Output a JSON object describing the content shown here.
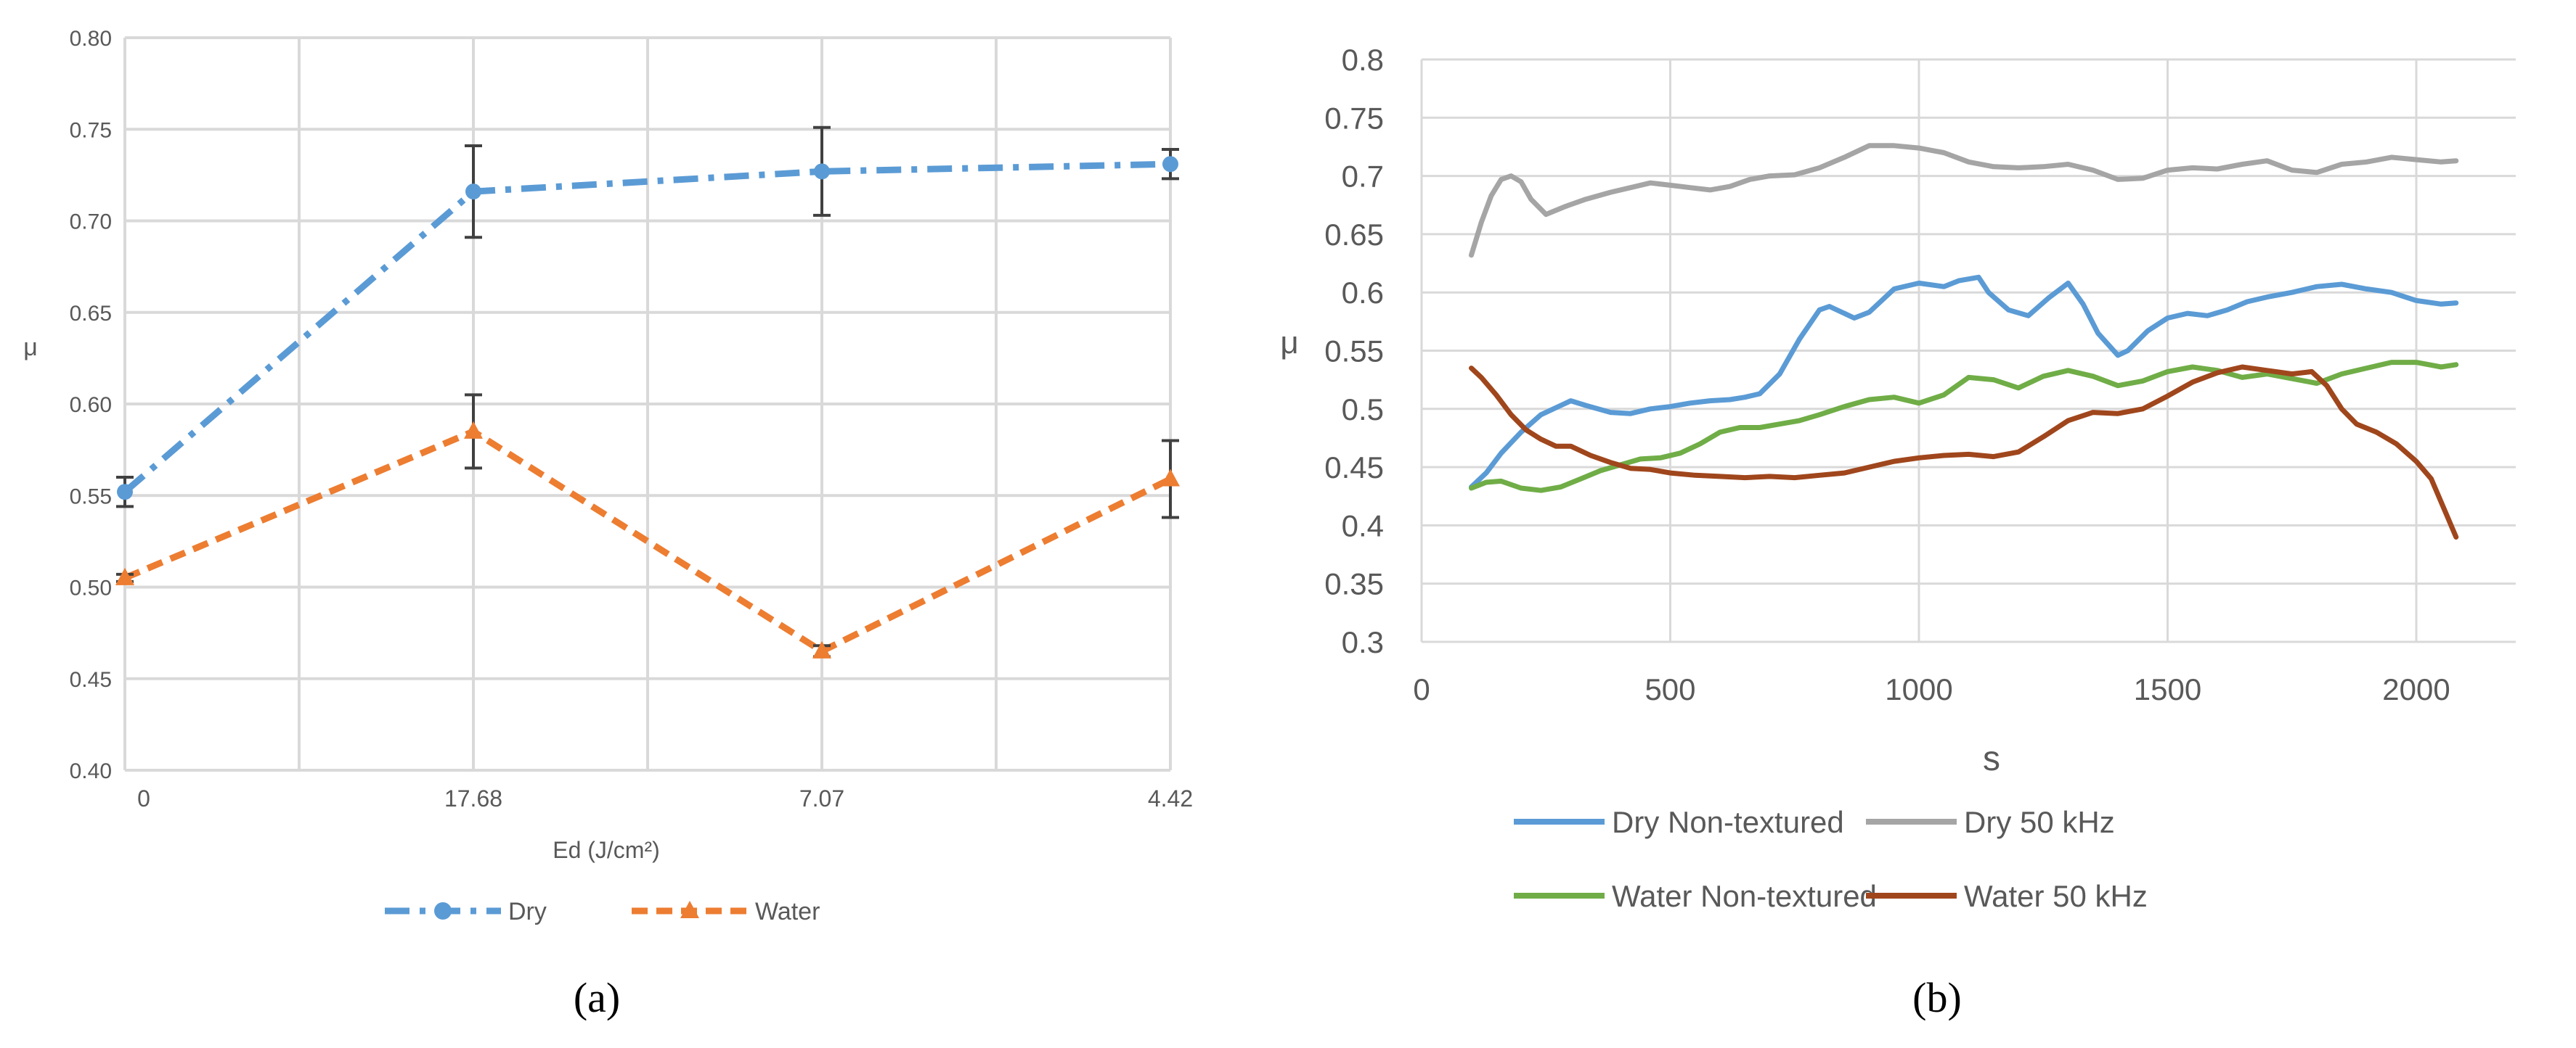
{
  "chart_data": [
    {
      "panel": "(a)",
      "type": "line",
      "title": "",
      "xlabel": "Ed (J/cm²)",
      "ylabel": "μ",
      "categories": [
        "0",
        "17.68",
        "7.07",
        "4.42"
      ],
      "ylim": [
        0.4,
        0.8
      ],
      "yticks": [
        "0.40",
        "0.45",
        "0.50",
        "0.55",
        "0.60",
        "0.65",
        "0.70",
        "0.75",
        "0.80"
      ],
      "grid": true,
      "legend": "bottom",
      "series": [
        {
          "name": "Dry",
          "values": [
            0.552,
            0.716,
            0.727,
            0.731
          ],
          "errors": [
            0.008,
            0.025,
            0.024,
            0.008
          ],
          "color": "#5B9BD5",
          "marker": "circle",
          "dash": "dash-dot"
        },
        {
          "name": "Water",
          "values": [
            0.505,
            0.585,
            0.465,
            0.559
          ],
          "errors": [
            0.002,
            0.02,
            0.003,
            0.021
          ],
          "color": "#ED7D31",
          "marker": "triangle",
          "dash": "dash"
        }
      ]
    },
    {
      "panel": "(b)",
      "type": "line",
      "title": "",
      "xlabel": "s",
      "ylabel": "μ",
      "xlim": [
        0,
        2200
      ],
      "xticks": [
        "0",
        "500",
        "1000",
        "1500",
        "2000"
      ],
      "ylim": [
        0.3,
        0.8
      ],
      "yticks": [
        "0.3",
        "0.35",
        "0.4",
        "0.45",
        "0.5",
        "0.55",
        "0.6",
        "0.65",
        "0.7",
        "0.75",
        "0.8"
      ],
      "grid": true,
      "legend": "bottom",
      "series": [
        {
          "name": "Dry Non-textured",
          "color": "#5B9BD5",
          "x": [
            100,
            130,
            160,
            200,
            240,
            280,
            300,
            330,
            380,
            420,
            460,
            500,
            540,
            580,
            620,
            650,
            680,
            720,
            760,
            800,
            820,
            850,
            870,
            900,
            950,
            1000,
            1050,
            1080,
            1120,
            1140,
            1180,
            1220,
            1260,
            1300,
            1330,
            1360,
            1400,
            1420,
            1460,
            1500,
            1540,
            1580,
            1620,
            1660,
            1700,
            1750,
            1800,
            1850,
            1900,
            1950,
            2000,
            2050,
            2080
          ],
          "y": [
            0.433,
            0.445,
            0.462,
            0.48,
            0.495,
            0.503,
            0.507,
            0.503,
            0.497,
            0.496,
            0.5,
            0.502,
            0.505,
            0.507,
            0.508,
            0.51,
            0.513,
            0.53,
            0.56,
            0.585,
            0.588,
            0.582,
            0.578,
            0.583,
            0.603,
            0.608,
            0.605,
            0.61,
            0.613,
            0.6,
            0.585,
            0.58,
            0.595,
            0.608,
            0.59,
            0.565,
            0.546,
            0.55,
            0.567,
            0.578,
            0.582,
            0.58,
            0.585,
            0.592,
            0.596,
            0.6,
            0.605,
            0.607,
            0.603,
            0.6,
            0.593,
            0.59,
            0.591
          ]
        },
        {
          "name": "Dry 50 kHz",
          "color": "#A5A5A5",
          "x": [
            100,
            120,
            140,
            160,
            180,
            200,
            220,
            250,
            290,
            330,
            380,
            420,
            460,
            500,
            540,
            580,
            620,
            660,
            700,
            750,
            800,
            850,
            900,
            950,
            1000,
            1050,
            1100,
            1150,
            1200,
            1250,
            1300,
            1350,
            1400,
            1450,
            1500,
            1550,
            1600,
            1650,
            1700,
            1750,
            1800,
            1850,
            1900,
            1950,
            2000,
            2050,
            2080
          ],
          "y": [
            0.632,
            0.66,
            0.683,
            0.697,
            0.7,
            0.695,
            0.68,
            0.667,
            0.674,
            0.68,
            0.686,
            0.69,
            0.694,
            0.692,
            0.69,
            0.688,
            0.691,
            0.697,
            0.7,
            0.701,
            0.707,
            0.716,
            0.726,
            0.726,
            0.724,
            0.72,
            0.712,
            0.708,
            0.707,
            0.708,
            0.71,
            0.705,
            0.697,
            0.698,
            0.705,
            0.707,
            0.706,
            0.71,
            0.713,
            0.705,
            0.703,
            0.71,
            0.712,
            0.716,
            0.714,
            0.712,
            0.713
          ]
        },
        {
          "name": "Water Non-textured",
          "color": "#70AD47",
          "x": [
            100,
            130,
            160,
            200,
            240,
            280,
            320,
            360,
            400,
            440,
            480,
            520,
            560,
            600,
            640,
            680,
            720,
            760,
            800,
            850,
            900,
            950,
            1000,
            1050,
            1100,
            1150,
            1200,
            1250,
            1300,
            1350,
            1400,
            1450,
            1500,
            1550,
            1600,
            1650,
            1700,
            1750,
            1800,
            1850,
            1900,
            1950,
            2000,
            2050,
            2080
          ],
          "y": [
            0.432,
            0.437,
            0.438,
            0.432,
            0.43,
            0.433,
            0.44,
            0.447,
            0.452,
            0.457,
            0.458,
            0.462,
            0.47,
            0.48,
            0.484,
            0.484,
            0.487,
            0.49,
            0.495,
            0.502,
            0.508,
            0.51,
            0.505,
            0.512,
            0.527,
            0.525,
            0.518,
            0.528,
            0.533,
            0.528,
            0.52,
            0.524,
            0.532,
            0.536,
            0.533,
            0.527,
            0.53,
            0.526,
            0.522,
            0.53,
            0.535,
            0.54,
            0.54,
            0.536,
            0.538
          ]
        },
        {
          "name": "Water 50 kHz",
          "color": "#A0461C",
          "x": [
            100,
            120,
            150,
            180,
            210,
            240,
            270,
            300,
            340,
            380,
            420,
            460,
            500,
            550,
            600,
            650,
            700,
            750,
            800,
            850,
            900,
            950,
            1000,
            1050,
            1100,
            1150,
            1200,
            1250,
            1300,
            1350,
            1400,
            1450,
            1500,
            1550,
            1600,
            1650,
            1700,
            1750,
            1790,
            1820,
            1850,
            1880,
            1920,
            1960,
            2000,
            2030,
            2060,
            2080
          ],
          "y": [
            0.535,
            0.527,
            0.512,
            0.495,
            0.482,
            0.474,
            0.468,
            0.468,
            0.46,
            0.454,
            0.449,
            0.448,
            0.445,
            0.443,
            0.442,
            0.441,
            0.442,
            0.441,
            0.443,
            0.445,
            0.45,
            0.455,
            0.458,
            0.46,
            0.461,
            0.459,
            0.463,
            0.476,
            0.49,
            0.497,
            0.496,
            0.5,
            0.511,
            0.523,
            0.531,
            0.536,
            0.533,
            0.53,
            0.532,
            0.52,
            0.5,
            0.487,
            0.48,
            0.47,
            0.455,
            0.44,
            0.41,
            0.39
          ]
        }
      ]
    }
  ]
}
